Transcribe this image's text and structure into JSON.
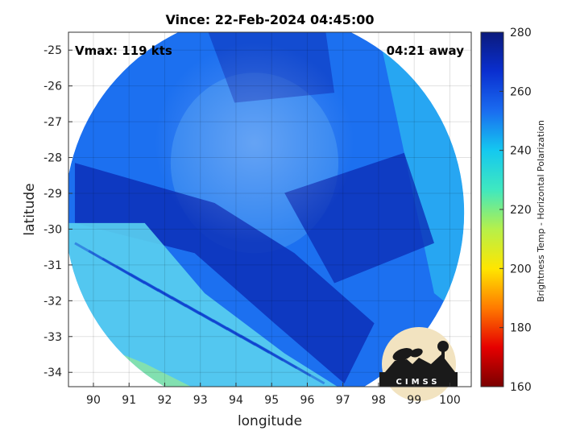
{
  "chart_data": {
    "type": "heatmap",
    "title": "Vince: 22-Feb-2024 04:45:00",
    "xlabel": "longitude",
    "ylabel": "latitude",
    "xlim": [
      89.3,
      100.6
    ],
    "ylim": [
      -34.4,
      -24.5
    ],
    "xticks": [
      90,
      91,
      92,
      93,
      94,
      95,
      96,
      97,
      98,
      99,
      100
    ],
    "yticks": [
      -25,
      -26,
      -27,
      -28,
      -29,
      -30,
      -31,
      -32,
      -33,
      -34
    ],
    "grid": true,
    "annotations": {
      "vmax": "Vmax: 119 kts",
      "away": "04:21 away"
    },
    "colorbar": {
      "label": "Brightness Temp - Horizontal Polarization",
      "range": [
        160,
        280
      ],
      "ticks": [
        160,
        180,
        200,
        220,
        240,
        260,
        280
      ],
      "colors": [
        "#7a0000",
        "#e60000",
        "#ff7a00",
        "#ffe600",
        "#b6f04a",
        "#3fe8c0",
        "#14c8f0",
        "#1a6cf0",
        "#0a2fd0",
        "#0b1a7c"
      ]
    },
    "swath": {
      "center": [
        94.8,
        -29.55
      ],
      "radius_deg": 5.6,
      "regions": [
        {
          "name": "cold-band",
          "value": 235,
          "color": "#5ad0f0"
        },
        {
          "name": "warm-core",
          "value": 262,
          "color": "#1e60e8"
        },
        {
          "name": "outer",
          "value": 255,
          "color": "#1c70f0"
        },
        {
          "name": "dark-rain",
          "value": 270,
          "color": "#0c2fb8"
        },
        {
          "name": "east-edge",
          "value": 248,
          "color": "#2ab4f2"
        }
      ]
    },
    "logo": "CIMSS"
  }
}
